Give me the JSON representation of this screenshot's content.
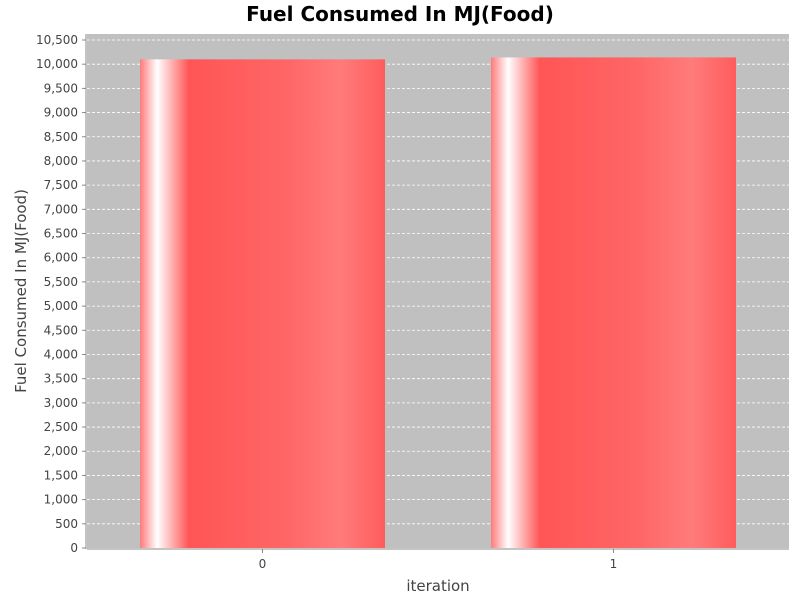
{
  "chart_data": {
    "type": "bar",
    "title": "Fuel Consumed In MJ(Food)",
    "xlabel": "iteration",
    "ylabel": "Fuel Consumed In MJ(Food)",
    "categories": [
      "0",
      "1"
    ],
    "values": [
      10100,
      10140
    ],
    "ylim": [
      0,
      10500
    ],
    "ytick_step": 500,
    "yticks": [
      "0",
      "500",
      "1,000",
      "1,500",
      "2,000",
      "2,500",
      "3,000",
      "3,500",
      "4,000",
      "4,500",
      "5,000",
      "5,500",
      "6,000",
      "6,500",
      "7,000",
      "7,500",
      "8,000",
      "8,500",
      "9,000",
      "9,500",
      "10,000",
      "10,500"
    ],
    "grid": true,
    "legend": "none",
    "colors": {
      "plot_background": "#c0c0c0",
      "bar": "#ff5555",
      "bar_highlight": "#ffffff",
      "grid": "#ffffff"
    }
  }
}
